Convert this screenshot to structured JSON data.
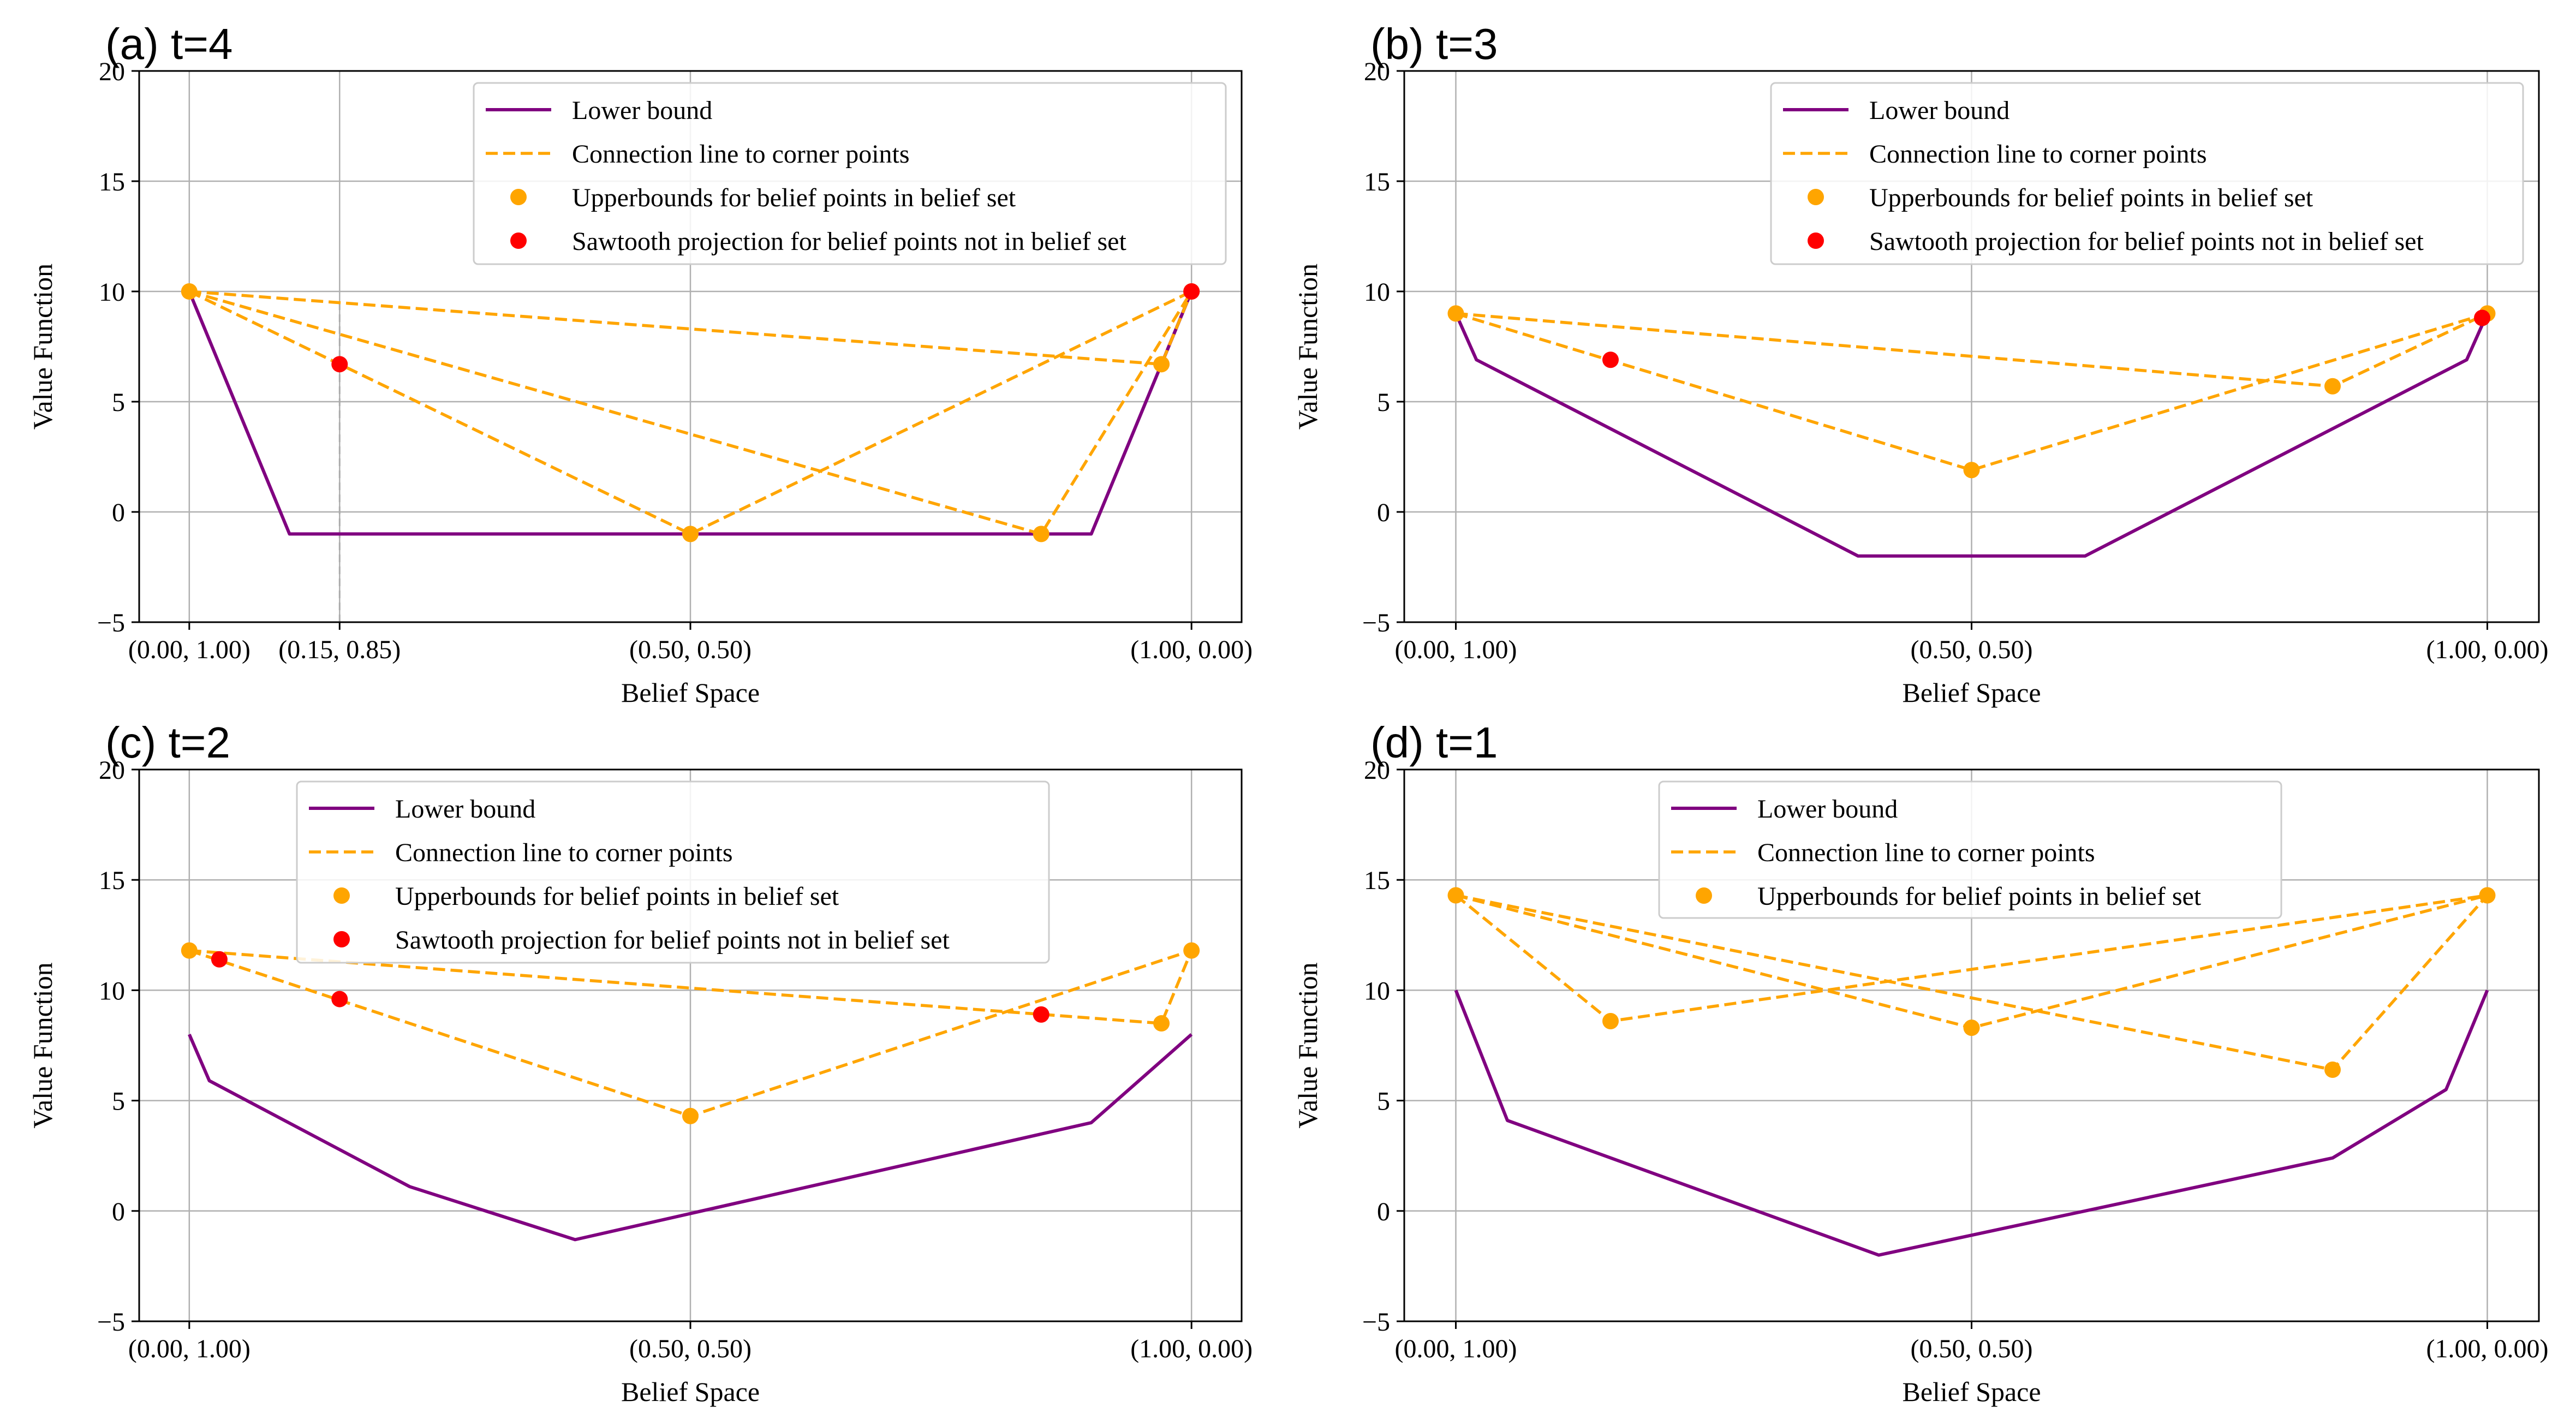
{
  "figure": {
    "colors": {
      "lower_bound": "#800080",
      "connection": "#FFA500",
      "upper_point": "#FFA500",
      "sawtooth_point": "#FF0000",
      "grid": "#b0b0b0",
      "guide": "#aaaaaa"
    }
  },
  "chart_data": [
    {
      "type": "line",
      "title": "(a) t=4",
      "xlabel": "Belief Space",
      "ylabel": "Value Function",
      "xlim": [
        -0.05,
        1.05
      ],
      "ylim": [
        -5,
        20
      ],
      "xticks": [
        0.0,
        0.15,
        0.5,
        1.0
      ],
      "xtick_labels": [
        "(0.00, 1.00)",
        "(0.15, 0.85)",
        "(0.50, 0.50)",
        "(1.00, 0.00)"
      ],
      "yticks": [
        -5,
        0,
        5,
        10,
        15,
        20
      ],
      "ytick_labels": [
        "−5",
        "0",
        "5",
        "10",
        "15",
        "20"
      ],
      "legend_position": "upper center",
      "legend": [
        {
          "kind": "line",
          "label": "Lower bound"
        },
        {
          "kind": "dashed",
          "label": "Connection line to corner points"
        },
        {
          "kind": "upper",
          "label": "Upperbounds for belief points in belief set"
        },
        {
          "kind": "sawtooth",
          "label": "Sawtooth projection for belief points not in belief set"
        }
      ],
      "lower_bound": {
        "x": [
          0.0,
          0.1,
          0.9,
          1.0
        ],
        "y": [
          10,
          -1,
          -1,
          10
        ]
      },
      "connection_lines": [
        {
          "x": [
            0.0,
            0.5,
            1.0
          ],
          "y": [
            10,
            -1,
            10
          ]
        },
        {
          "x": [
            0.0,
            0.85,
            1.0
          ],
          "y": [
            10,
            -1,
            10
          ]
        },
        {
          "x": [
            0.0,
            0.97,
            1.0
          ],
          "y": [
            10,
            6.7,
            10
          ]
        }
      ],
      "upper_points": {
        "x": [
          0.0,
          0.5,
          0.85,
          0.97,
          1.0
        ],
        "y": [
          10,
          -1,
          -1,
          6.7,
          10
        ]
      },
      "sawtooth_points": {
        "x": [
          0.15,
          1.0
        ],
        "y": [
          6.7,
          10
        ]
      },
      "guide_line": {
        "x": 0.15,
        "y": [
          -5,
          9.5
        ]
      }
    },
    {
      "type": "line",
      "title": "(b) t=3",
      "xlabel": "Belief Space",
      "ylabel": "Value Function",
      "xlim": [
        -0.05,
        1.05
      ],
      "ylim": [
        -5,
        20
      ],
      "xticks": [
        0.0,
        0.5,
        1.0
      ],
      "xtick_labels": [
        "(0.00, 1.00)",
        "(0.50, 0.50)",
        "(1.00, 0.00)"
      ],
      "yticks": [
        -5,
        0,
        5,
        10,
        15,
        20
      ],
      "ytick_labels": [
        "−5",
        "0",
        "5",
        "10",
        "15",
        "20"
      ],
      "legend_position": "upper right",
      "legend": [
        {
          "kind": "line",
          "label": "Lower bound"
        },
        {
          "kind": "dashed",
          "label": "Connection line to corner points"
        },
        {
          "kind": "upper",
          "label": "Upperbounds for belief points in belief set"
        },
        {
          "kind": "sawtooth",
          "label": "Sawtooth projection for belief points not in belief set"
        }
      ],
      "lower_bound": {
        "x": [
          0.0,
          0.02,
          0.39,
          0.61,
          0.98,
          1.0
        ],
        "y": [
          9,
          6.9,
          -2,
          -2,
          6.9,
          9
        ]
      },
      "connection_lines": [
        {
          "x": [
            0.0,
            0.5,
            1.0
          ],
          "y": [
            9,
            1.9,
            9
          ]
        },
        {
          "x": [
            0.0,
            0.85,
            1.0
          ],
          "y": [
            9,
            5.7,
            9
          ]
        }
      ],
      "upper_points": {
        "x": [
          0.0,
          0.5,
          0.85,
          1.0
        ],
        "y": [
          9,
          1.9,
          5.7,
          9
        ]
      },
      "sawtooth_points": {
        "x": [
          0.15,
          0.995
        ],
        "y": [
          6.9,
          8.8
        ]
      },
      "guide_line": null
    },
    {
      "type": "line",
      "title": "(c) t=2",
      "xlabel": "Belief Space",
      "ylabel": "Value Function",
      "xlim": [
        -0.05,
        1.05
      ],
      "ylim": [
        -5,
        20
      ],
      "xticks": [
        0.0,
        0.5,
        1.0
      ],
      "xtick_labels": [
        "(0.00, 1.00)",
        "(0.50, 0.50)",
        "(1.00, 0.00)"
      ],
      "yticks": [
        -5,
        0,
        5,
        10,
        15,
        20
      ],
      "ytick_labels": [
        "−5",
        "0",
        "5",
        "10",
        "15",
        "20"
      ],
      "legend_position": "upper center",
      "legend": [
        {
          "kind": "line",
          "label": "Lower bound"
        },
        {
          "kind": "dashed",
          "label": "Connection line to corner points"
        },
        {
          "kind": "upper",
          "label": "Upperbounds for belief points in belief set"
        },
        {
          "kind": "sawtooth",
          "label": "Sawtooth projection for belief points not in belief set"
        }
      ],
      "lower_bound": {
        "x": [
          0.0,
          0.02,
          0.22,
          0.385,
          0.9,
          1.0
        ],
        "y": [
          8,
          5.9,
          1.1,
          -1.3,
          4.0,
          8
        ]
      },
      "connection_lines": [
        {
          "x": [
            0.0,
            0.5,
            1.0
          ],
          "y": [
            11.8,
            4.3,
            11.8
          ]
        },
        {
          "x": [
            0.0,
            0.97,
            1.0
          ],
          "y": [
            11.8,
            8.5,
            11.8
          ]
        }
      ],
      "upper_points": {
        "x": [
          0.0,
          0.5,
          0.97,
          1.0
        ],
        "y": [
          11.8,
          4.3,
          8.5,
          11.8
        ]
      },
      "sawtooth_points": {
        "x": [
          0.03,
          0.15,
          0.85
        ],
        "y": [
          11.4,
          9.6,
          8.9
        ]
      },
      "guide_line": null
    },
    {
      "type": "line",
      "title": "(d) t=1",
      "xlabel": "Belief Space",
      "ylabel": "Value Function",
      "xlim": [
        -0.05,
        1.05
      ],
      "ylim": [
        -5,
        20
      ],
      "xticks": [
        0.0,
        0.5,
        1.0
      ],
      "xtick_labels": [
        "(0.00, 1.00)",
        "(0.50, 0.50)",
        "(1.00, 0.00)"
      ],
      "yticks": [
        -5,
        0,
        5,
        10,
        15,
        20
      ],
      "ytick_labels": [
        "−5",
        "0",
        "5",
        "10",
        "15",
        "20"
      ],
      "legend_position": "upper center",
      "legend": [
        {
          "kind": "line",
          "label": "Lower bound"
        },
        {
          "kind": "dashed",
          "label": "Connection line to corner points"
        },
        {
          "kind": "upper",
          "label": "Upperbounds for belief points in belief set"
        }
      ],
      "lower_bound": {
        "x": [
          0.0,
          0.05,
          0.41,
          0.85,
          0.96,
          1.0
        ],
        "y": [
          10,
          4.1,
          -2,
          2.4,
          5.5,
          10
        ]
      },
      "connection_lines": [
        {
          "x": [
            0.0,
            0.15,
            1.0
          ],
          "y": [
            14.3,
            8.6,
            14.3
          ]
        },
        {
          "x": [
            0.0,
            0.5,
            1.0
          ],
          "y": [
            14.3,
            8.3,
            14.3
          ]
        },
        {
          "x": [
            0.0,
            0.85,
            1.0
          ],
          "y": [
            14.3,
            6.4,
            14.3
          ]
        }
      ],
      "upper_points": {
        "x": [
          0.0,
          0.15,
          0.5,
          0.85,
          1.0
        ],
        "y": [
          14.3,
          8.6,
          8.3,
          6.4,
          14.3
        ]
      },
      "sawtooth_points": {
        "x": [],
        "y": []
      },
      "guide_line": null
    }
  ]
}
